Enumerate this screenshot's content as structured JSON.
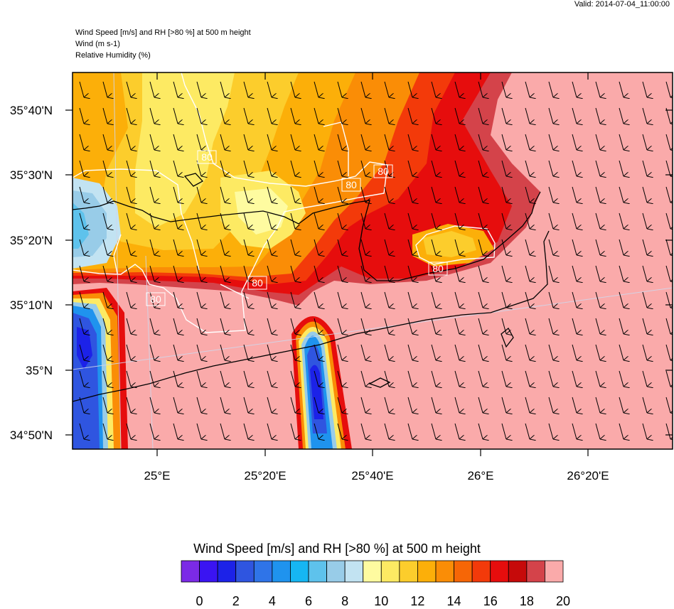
{
  "header": {
    "valid": "Valid: 2014-07-04_11:00:00",
    "line1": "Wind Speed [m/s] and RH [>80 %] at 500 m height",
    "line2": "Wind   (m s-1)",
    "line3": "Relative Humidity   (%)"
  },
  "map": {
    "lat_labels": [
      "35°40'N",
      "35°30'N",
      "35°20'N",
      "35°10'N",
      "35°N",
      "34°50'N"
    ],
    "lon_labels": [
      "25°E",
      "25°20'E",
      "25°40'E",
      "26°E",
      "26°20'E"
    ],
    "contour_labels": [
      "80",
      "80",
      "80",
      "80",
      "80",
      "80"
    ],
    "wind_direction": "north-to-south"
  },
  "colorbar": {
    "title": "Wind Speed [m/s] and RH [>80 %] at 500 m height",
    "labels": [
      "0",
      "2",
      "4",
      "6",
      "8",
      "10",
      "12",
      "14",
      "16",
      "18",
      "20"
    ],
    "colors": [
      "#7b2ae6",
      "#3a14f2",
      "#1c22e8",
      "#2f55e0",
      "#2f74e8",
      "#1f93ee",
      "#16b6f2",
      "#5ec2ec",
      "#98cce8",
      "#c2e3f2",
      "#fefba0",
      "#fdea63",
      "#fccd2c",
      "#fcaf09",
      "#fa8d06",
      "#f66606",
      "#f33a0a",
      "#e60d0d",
      "#c60a0a",
      "#d4434a",
      "#faaaaa"
    ]
  }
}
